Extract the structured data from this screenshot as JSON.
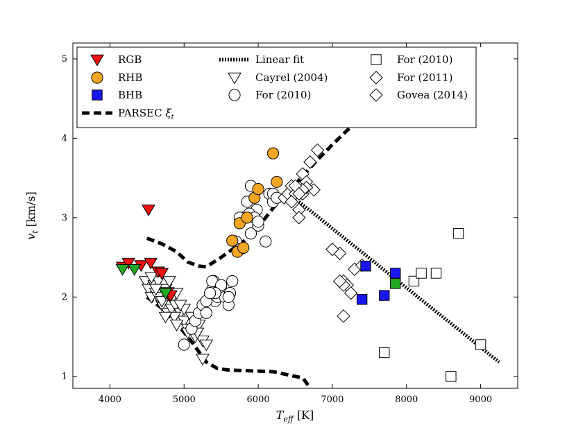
{
  "chart_data": {
    "type": "scatter",
    "xlabel": "T_eff [K]",
    "ylabel": "v_t [km/s]",
    "xlim": [
      3500,
      9500
    ],
    "ylim": [
      0.85,
      5.2
    ],
    "xticks": [
      4000,
      5000,
      6000,
      7000,
      8000,
      9000
    ],
    "yticks": [
      1,
      2,
      3,
      4,
      5
    ],
    "grid": false,
    "legend_position": "top",
    "legend": [
      {
        "label": "RGB",
        "marker": "triangle-down-filled",
        "color": "#ee1111"
      },
      {
        "label": "RHB",
        "marker": "circle-filled",
        "color": "#f5a623"
      },
      {
        "label": "BHB",
        "marker": "square-filled",
        "color": "#1818ee"
      },
      {
        "label": "PARSEC ξt",
        "marker": "dashed-line",
        "color": "#000000"
      },
      {
        "label": "Linear fit",
        "marker": "dotted-line",
        "color": "#000000"
      },
      {
        "label": "Cayrel (2004)",
        "marker": "triangle-down-open",
        "color": "#000000"
      },
      {
        "label": "For (2010)",
        "marker": "circle-open",
        "color": "#000000"
      },
      {
        "label": "For (2010)",
        "marker": "square-open",
        "color": "#000000"
      },
      {
        "label": "For (2011)",
        "marker": "diamond-open",
        "color": "#000000"
      },
      {
        "label": "Govea (2014)",
        "marker": "diamond-open",
        "color": "#000000"
      }
    ],
    "series": [
      {
        "name": "Cayrel (2004)",
        "marker": "triangle-down-open",
        "x": [
          4480,
          4520,
          4560,
          4600,
          4620,
          4650,
          4700,
          4750,
          4780,
          4800,
          4830,
          4850,
          4880,
          4900,
          4950,
          5000,
          5050,
          5100,
          5120,
          5150,
          5200,
          5250,
          5300,
          4560,
          4650,
          4700,
          4870,
          5050,
          4900,
          5000,
          5180,
          4750,
          4620,
          4950,
          5250
        ],
        "y": [
          2.2,
          2.1,
          2.0,
          2.15,
          2.05,
          2.2,
          1.9,
          2.1,
          1.8,
          2.2,
          1.85,
          2.0,
          1.9,
          2.05,
          1.8,
          1.7,
          1.6,
          1.75,
          1.6,
          1.5,
          1.65,
          1.45,
          1.4,
          2.25,
          2.0,
          1.95,
          1.75,
          1.55,
          1.65,
          1.85,
          1.55,
          1.75,
          2.1,
          1.9,
          1.22
        ]
      },
      {
        "name": "For (2010) circles",
        "marker": "circle-open",
        "x": [
          5000,
          5100,
          5150,
          5200,
          5250,
          5300,
          5350,
          5380,
          5400,
          5420,
          5450,
          5500,
          5550,
          5600,
          5620,
          5650,
          5700,
          5750,
          5800,
          5850,
          5900,
          5950,
          6000,
          6100,
          6150,
          5380,
          5500,
          5750,
          5900,
          5980,
          5300,
          6200,
          5420,
          5600,
          5880,
          5950,
          6000,
          6200,
          6250,
          5350
        ],
        "y": [
          1.4,
          1.6,
          1.7,
          1.8,
          1.9,
          1.8,
          2.0,
          2.1,
          2.2,
          1.95,
          2.0,
          2.1,
          2.0,
          1.9,
          2.05,
          2.2,
          2.7,
          2.6,
          3.0,
          3.2,
          3.4,
          3.05,
          2.9,
          2.7,
          3.3,
          2.2,
          2.15,
          3.0,
          2.8,
          3.1,
          1.95,
          3.2,
          2.05,
          2.0,
          3.05,
          3.0,
          2.95,
          3.3,
          3.25,
          2.05
        ]
      },
      {
        "name": "RGB",
        "marker": "triangle-down-filled",
        "x": [
          4520,
          4170,
          4250,
          4420,
          4550,
          4650,
          4700,
          4780,
          4800,
          4820
        ],
        "y": [
          3.1,
          2.38,
          2.43,
          2.4,
          2.43,
          2.32,
          2.3,
          2.06,
          2.02,
          2.02
        ]
      },
      {
        "name": "RGB (green)",
        "marker": "triangle-down-filled",
        "color": "#22aa22",
        "x": [
          4170,
          4330,
          4750
        ],
        "y": [
          2.35,
          2.35,
          2.05
        ]
      },
      {
        "name": "RHB",
        "marker": "circle-filled",
        "x": [
          5650,
          5720,
          5750,
          5800,
          5850,
          5950,
          6000,
          6200,
          6250
        ],
        "y": [
          2.71,
          2.57,
          2.93,
          2.62,
          3.0,
          3.25,
          3.36,
          3.81,
          3.45
        ]
      },
      {
        "name": "For (2011) / Govea (2014)",
        "marker": "diamond-open",
        "x": [
          6350,
          6400,
          6450,
          6500,
          6550,
          6600,
          6650,
          6700,
          6750,
          6800,
          6550,
          6600,
          6650,
          6600,
          7150,
          7200,
          7250,
          7100,
          7150,
          7300,
          7150,
          7000,
          7400,
          7100,
          6500,
          6550,
          6450
        ],
        "y": [
          3.25,
          3.3,
          3.4,
          3.3,
          3.1,
          3.55,
          3.45,
          3.7,
          3.35,
          3.85,
          3.0,
          3.3,
          3.38,
          3.35,
          2.2,
          2.15,
          2.05,
          2.55,
          2.15,
          2.35,
          1.76,
          2.6,
          2.4,
          2.2,
          3.4,
          3.3,
          3.2
        ]
      },
      {
        "name": "For (2010) squares",
        "marker": "square-open",
        "x": [
          7700,
          8100,
          8200,
          8400,
          8600,
          8700,
          9000
        ],
        "y": [
          1.3,
          2.2,
          2.3,
          2.3,
          1.0,
          2.8,
          1.4
        ]
      },
      {
        "name": "BHB",
        "marker": "square-filled",
        "x": [
          7400,
          7450,
          7700,
          7850
        ],
        "y": [
          1.97,
          2.39,
          2.02,
          2.3
        ]
      },
      {
        "name": "BHB (green)",
        "marker": "square-filled",
        "color": "#22aa22",
        "x": [
          7850
        ],
        "y": [
          2.17
        ]
      },
      {
        "name": "Linear fit",
        "type": "line",
        "style": "dotted",
        "x": [
          6550,
          9250
        ],
        "y": [
          3.2,
          1.18
        ]
      },
      {
        "name": "PARSEC upper",
        "type": "line",
        "style": "dashed",
        "x": [
          4500,
          4700,
          4900,
          5050,
          5200,
          5300,
          5500,
          5800,
          6000,
          6200,
          6500,
          6800,
          7000,
          7200,
          7300,
          7350
        ],
        "y": [
          2.74,
          2.67,
          2.57,
          2.44,
          2.39,
          2.38,
          2.5,
          2.7,
          2.88,
          3.12,
          3.42,
          3.73,
          3.92,
          4.1,
          4.18,
          4.2
        ]
      },
      {
        "name": "PARSEC lower",
        "type": "line",
        "style": "dashed",
        "x": [
          4500,
          4700,
          4900,
          5100,
          5300,
          5450,
          5600,
          5900,
          6200,
          6500,
          6600,
          6650,
          6700
        ],
        "y": [
          2.0,
          1.86,
          1.67,
          1.44,
          1.18,
          1.1,
          1.08,
          1.07,
          1.06,
          1.0,
          0.98,
          0.92,
          0.85
        ]
      }
    ]
  }
}
